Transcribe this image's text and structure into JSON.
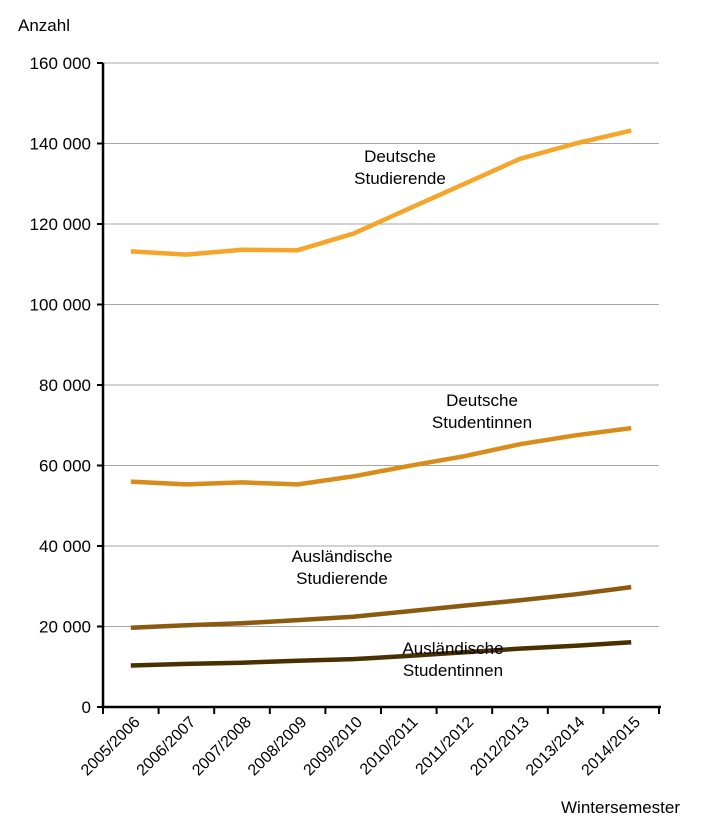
{
  "chart_data": {
    "type": "line",
    "ylabel": "Anzahl",
    "xlabel": "Wintersemester",
    "ylim": [
      0,
      160000
    ],
    "yticks": [
      0,
      20000,
      40000,
      60000,
      80000,
      100000,
      120000,
      140000,
      160000
    ],
    "ytick_labels": [
      "0",
      "20 000",
      "40 000",
      "60 000",
      "80 000",
      "100 000",
      "120 000",
      "140 000",
      "160 000"
    ],
    "grid": true,
    "categories": [
      "2005/2006",
      "2006/2007",
      "2007/2008",
      "2008/2009",
      "2009/2010",
      "2010/2011",
      "2011/2012",
      "2012/2013",
      "2013/2014",
      "2014/2015"
    ],
    "series": [
      {
        "name": "Deutsche Studierende",
        "label_lines": [
          "Deutsche",
          "Studierende"
        ],
        "color": "#f5a52a",
        "values": [
          113200,
          112400,
          113600,
          113500,
          117600,
          123800,
          130000,
          136200,
          140000,
          143200
        ]
      },
      {
        "name": "Deutsche Studentinnen",
        "label_lines": [
          "Deutsche",
          "Studentinnen"
        ],
        "color": "#d98c1a",
        "values": [
          56000,
          55300,
          55800,
          55300,
          57300,
          59900,
          62300,
          65300,
          67500,
          69300
        ]
      },
      {
        "name": "Ausländische Studierende",
        "label_lines": [
          "Ausländische",
          "Studierende"
        ],
        "color": "#8a5a10",
        "values": [
          19700,
          20300,
          20800,
          21600,
          22400,
          23800,
          25200,
          26500,
          28000,
          29800
        ]
      },
      {
        "name": "Ausländische Studentinnen",
        "label_lines": [
          "Ausländische",
          "Studentinnen"
        ],
        "color": "#4a3000",
        "values": [
          10300,
          10700,
          11000,
          11500,
          11900,
          12700,
          13600,
          14500,
          15200,
          16100
        ]
      }
    ]
  }
}
